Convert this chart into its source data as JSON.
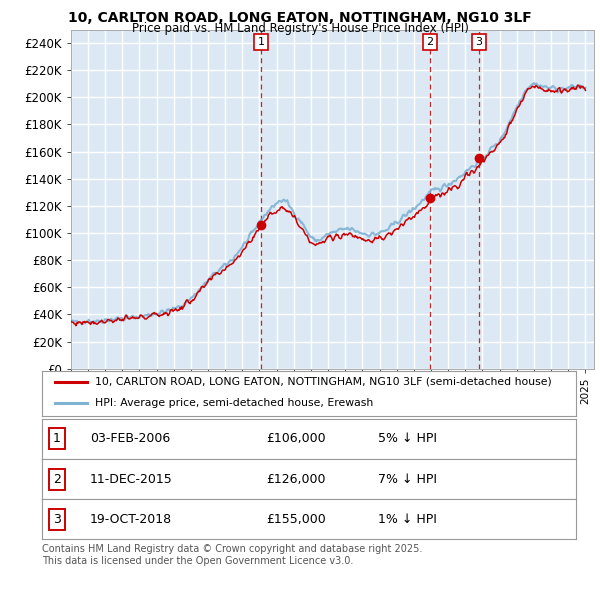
{
  "title_line1": "10, CARLTON ROAD, LONG EATON, NOTTINGHAM, NG10 3LF",
  "title_line2": "Price paid vs. HM Land Registry's House Price Index (HPI)",
  "plot_bg_color": "#dce9f5",
  "grid_color": "#ffffff",
  "ylim": [
    0,
    250000
  ],
  "yticks": [
    0,
    20000,
    40000,
    60000,
    80000,
    100000,
    120000,
    140000,
    160000,
    180000,
    200000,
    220000,
    240000
  ],
  "year_start": 1995,
  "year_end": 2025,
  "sale_dates_num": [
    2006.09,
    2015.94,
    2018.8
  ],
  "sale_prices": [
    106000,
    126000,
    155000
  ],
  "sale_labels": [
    "1",
    "2",
    "3"
  ],
  "legend_red": "10, CARLTON ROAD, LONG EATON, NOTTINGHAM, NG10 3LF (semi-detached house)",
  "legend_blue": "HPI: Average price, semi-detached house, Erewash",
  "table_data": [
    [
      "1",
      "03-FEB-2006",
      "£106,000",
      "5% ↓ HPI"
    ],
    [
      "2",
      "11-DEC-2015",
      "£126,000",
      "7% ↓ HPI"
    ],
    [
      "3",
      "19-OCT-2018",
      "£155,000",
      "1% ↓ HPI"
    ]
  ],
  "footer": "Contains HM Land Registry data © Crown copyright and database right 2025.\nThis data is licensed under the Open Government Licence v3.0.",
  "red_color": "#cc0000",
  "blue_color": "#7fb3d3"
}
